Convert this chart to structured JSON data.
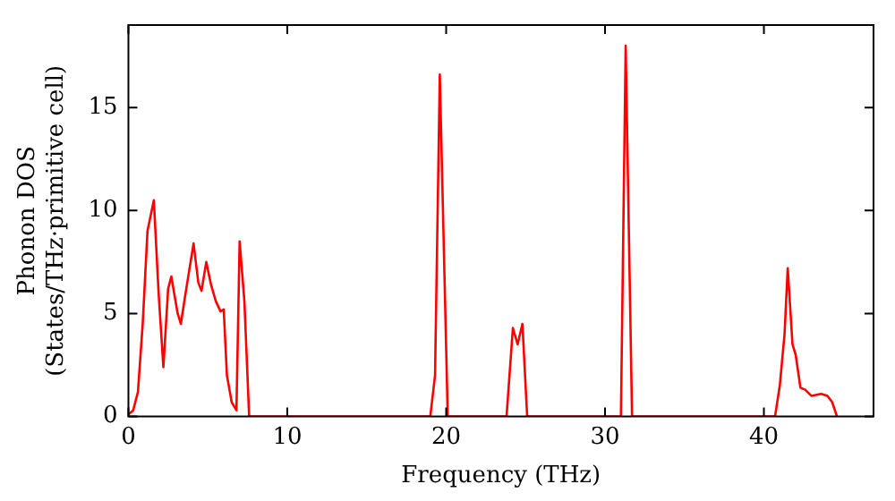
{
  "chart_data": {
    "type": "line",
    "xlabel": "Frequency (THz)",
    "ylabel": "Phonon DOS\n(States/THz·primitive cell)",
    "xlim": [
      0,
      46.9
    ],
    "ylim": [
      0,
      19
    ],
    "xticks": [
      0,
      10,
      20,
      30,
      40
    ],
    "yticks": [
      0,
      5,
      10,
      15
    ],
    "grid": false,
    "legend": false,
    "marker": "none",
    "line_style": "solid",
    "series": [
      {
        "color": "#ff0000",
        "x": [
          0,
          0.3,
          0.6,
          0.9,
          1.2,
          1.6,
          1.9,
          2.2,
          2.5,
          2.7,
          3.1,
          3.3,
          3.6,
          4.1,
          4.4,
          4.6,
          4.9,
          5.2,
          5.5,
          5.8,
          6.0,
          6.2,
          6.5,
          6.8,
          7.0,
          7.3,
          7.6,
          19.0,
          19.3,
          19.6,
          20.1,
          23.8,
          24.2,
          24.5,
          24.8,
          25.1,
          31.0,
          31.3,
          31.7,
          40.7,
          41.0,
          41.3,
          41.5,
          41.8,
          42.0,
          42.3,
          42.6,
          43.0,
          43.6,
          44.0,
          44.3,
          44.6
        ],
        "values": [
          0.1,
          0.3,
          1.2,
          4.5,
          9,
          10.5,
          6,
          2.4,
          6.2,
          6.8,
          5,
          4.5,
          6,
          8.4,
          6.5,
          6.1,
          7.5,
          6.4,
          5.6,
          5.1,
          5.2,
          2,
          0.7,
          0.3,
          8.5,
          5.6,
          0,
          0,
          2,
          16.6,
          0,
          0,
          4.3,
          3.5,
          4.5,
          0,
          0,
          18,
          0,
          0,
          1.5,
          4,
          7.2,
          3.5,
          3,
          1.4,
          1.3,
          1,
          1.1,
          1,
          0.7,
          0
        ]
      }
    ]
  }
}
